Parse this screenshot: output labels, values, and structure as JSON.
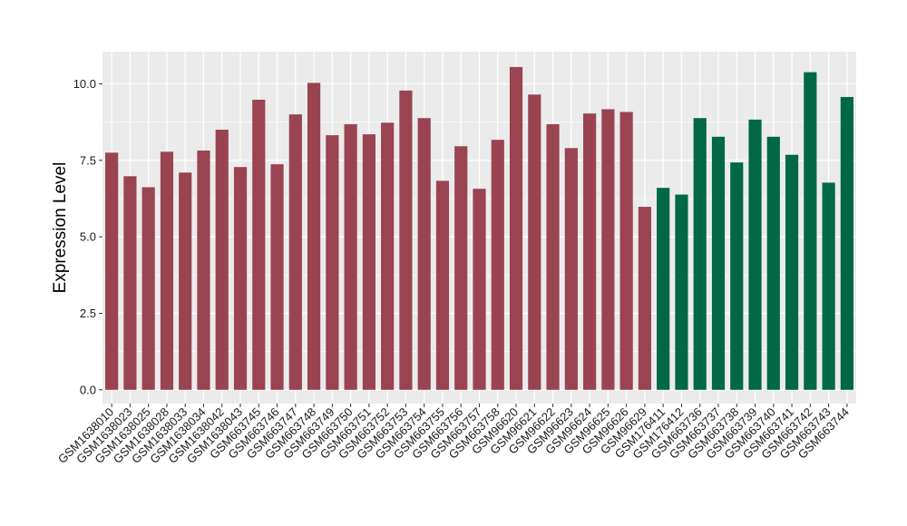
{
  "chart_data": {
    "type": "bar",
    "xlabel": "",
    "ylabel": "Expression Level",
    "ylim": [
      -0.45,
      11.05
    ],
    "yticks": [
      0.0,
      2.5,
      5.0,
      7.5,
      10.0
    ],
    "ytick_labels": [
      "0.0",
      "2.5",
      "5.0",
      "7.5",
      "10.0"
    ],
    "grid": true,
    "legend": "none",
    "colors": {
      "group_a": "#9A4451",
      "group_b": "#006847",
      "panel_bg": "#EBEBEB",
      "grid": "#FFFFFF"
    },
    "categories": [
      "GSM1638010",
      "GSM1638023",
      "GSM1638025",
      "GSM1638028",
      "GSM1638033",
      "GSM1638034",
      "GSM1638042",
      "GSM1638043",
      "GSM663745",
      "GSM663746",
      "GSM663747",
      "GSM663748",
      "GSM663749",
      "GSM663750",
      "GSM663751",
      "GSM663752",
      "GSM663753",
      "GSM663754",
      "GSM663755",
      "GSM663756",
      "GSM663757",
      "GSM663758",
      "GSM96620",
      "GSM96621",
      "GSM96622",
      "GSM96623",
      "GSM96624",
      "GSM96625",
      "GSM96626",
      "GSM96629",
      "GSM176411",
      "GSM176412",
      "GSM663736",
      "GSM663737",
      "GSM663738",
      "GSM663739",
      "GSM663740",
      "GSM663741",
      "GSM663742",
      "GSM663743",
      "GSM663744"
    ],
    "values": [
      7.75,
      6.98,
      6.62,
      7.78,
      7.1,
      7.82,
      8.5,
      7.28,
      9.48,
      7.37,
      9.0,
      10.03,
      8.32,
      8.68,
      8.35,
      8.73,
      9.78,
      8.88,
      6.83,
      7.96,
      6.57,
      8.17,
      10.55,
      9.65,
      8.68,
      7.9,
      9.03,
      9.17,
      9.08,
      5.98,
      6.6,
      6.38,
      8.88,
      8.27,
      7.43,
      8.83,
      8.27,
      7.68,
      10.38,
      6.77,
      9.57
    ],
    "groups": [
      "a",
      "a",
      "a",
      "a",
      "a",
      "a",
      "a",
      "a",
      "a",
      "a",
      "a",
      "a",
      "a",
      "a",
      "a",
      "a",
      "a",
      "a",
      "a",
      "a",
      "a",
      "a",
      "a",
      "a",
      "a",
      "a",
      "a",
      "a",
      "a",
      "a",
      "b",
      "b",
      "b",
      "b",
      "b",
      "b",
      "b",
      "b",
      "b",
      "b",
      "b"
    ]
  }
}
